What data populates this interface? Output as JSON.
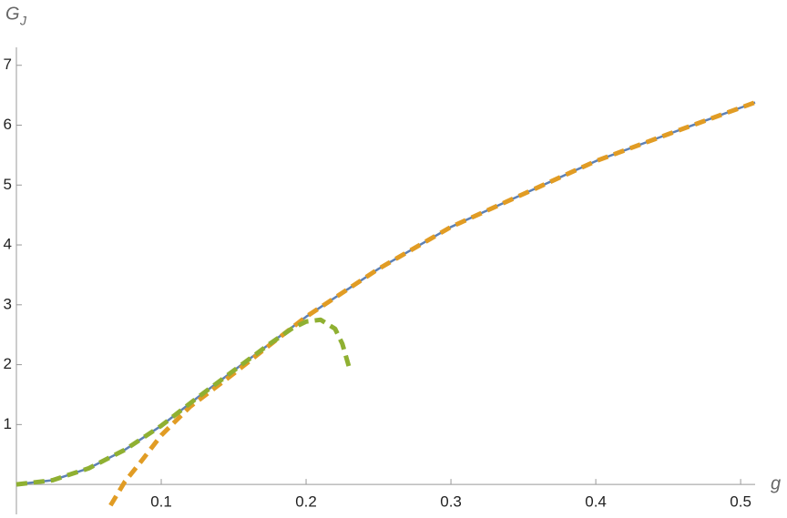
{
  "chart_data": {
    "type": "line",
    "x_label": "g",
    "y_label": "G",
    "y_label_subscript": "J",
    "xlim": [
      0,
      0.51
    ],
    "ylim": [
      -0.5,
      7.3
    ],
    "xticks": [
      0.1,
      0.2,
      0.3,
      0.4,
      0.5
    ],
    "yticks": [
      1,
      2,
      3,
      4,
      5,
      6,
      7
    ],
    "series": [
      {
        "color": "#5e81b5",
        "dashed": false,
        "x": [
          0,
          0.025,
          0.05,
          0.075,
          0.1,
          0.125,
          0.15,
          0.175,
          0.2,
          0.25,
          0.3,
          0.35,
          0.4,
          0.45,
          0.51
        ],
        "values": [
          0,
          0.07,
          0.27,
          0.58,
          0.98,
          1.45,
          1.9,
          2.35,
          2.8,
          3.6,
          4.3,
          4.85,
          5.4,
          5.85,
          6.38
        ]
      },
      {
        "color": "#e19c24",
        "dashed": true,
        "x": [
          0.065,
          0.075,
          0.085,
          0.1,
          0.12,
          0.15,
          0.175,
          0.2,
          0.25,
          0.3,
          0.35,
          0.4,
          0.45,
          0.51
        ],
        "values": [
          -0.35,
          0.05,
          0.35,
          0.82,
          1.3,
          1.85,
          2.33,
          2.8,
          3.6,
          4.3,
          4.85,
          5.4,
          5.85,
          6.38
        ]
      },
      {
        "color": "#8fb032",
        "dashed": true,
        "x": [
          0,
          0.025,
          0.05,
          0.075,
          0.1,
          0.125,
          0.15,
          0.175,
          0.19,
          0.2,
          0.21,
          0.22,
          0.225,
          0.23
        ],
        "values": [
          0,
          0.07,
          0.27,
          0.58,
          0.98,
          1.45,
          1.9,
          2.35,
          2.6,
          2.72,
          2.75,
          2.6,
          2.35,
          1.93
        ]
      }
    ]
  }
}
